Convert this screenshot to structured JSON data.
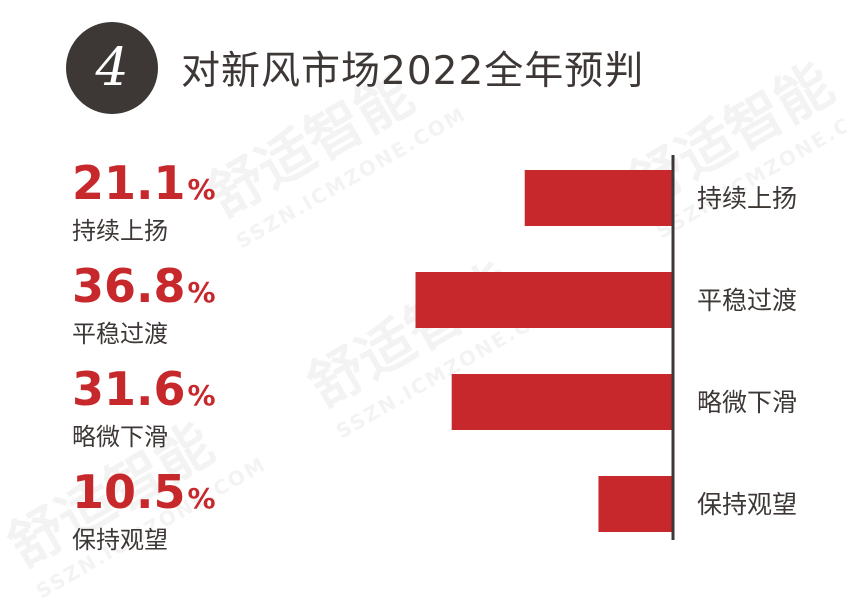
{
  "header": {
    "number": "4",
    "title": "对新风市场2022全年预判"
  },
  "chart_data": {
    "type": "bar",
    "orientation": "horizontal",
    "categories": [
      "持续上扬",
      "平稳过渡",
      "略微下滑",
      "保持观望"
    ],
    "values": [
      21.1,
      36.8,
      31.6,
      10.5
    ],
    "value_suffix": "%",
    "bar_color": "#c7282b",
    "xlim": [
      0,
      36.8
    ]
  },
  "watermark": {
    "text": "舒适智能",
    "subtext": "SSZN.ICMZONE.COM"
  }
}
